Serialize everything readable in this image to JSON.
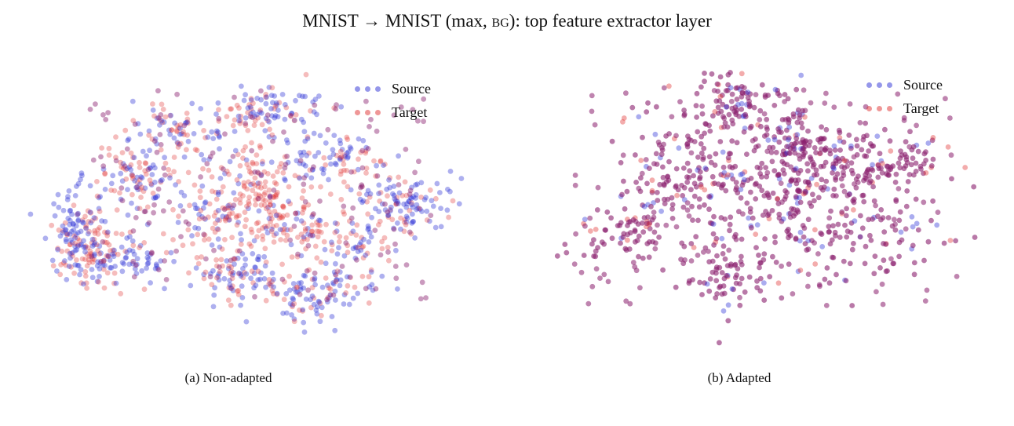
{
  "figure": {
    "title_prefix": "MNIST → MNIST (max, ",
    "title_sc": "bg",
    "title_suffix": "): top feature extractor layer"
  },
  "legend": {
    "source_label": "Source",
    "target_label": "Target"
  },
  "colors": {
    "source": "#2b2fd6",
    "target": "#e0302f",
    "mixed": "#8a1f6e"
  },
  "chart_data": [
    {
      "type": "scatter",
      "title": "",
      "caption": "(a)  Non-adapted",
      "xlabel": "",
      "ylabel": "",
      "grid": false,
      "axes_visible": false,
      "legend_position": "top-right",
      "series": [
        {
          "name": "Source",
          "color": "#2b2fd6",
          "marker_size": 4,
          "alpha": 0.4
        },
        {
          "name": "Target",
          "color": "#e0302f",
          "marker_size": 4,
          "alpha": 0.4
        }
      ]
    },
    {
      "type": "scatter",
      "title": "",
      "caption": "(b)  Adapted",
      "xlabel": "",
      "ylabel": "",
      "grid": false,
      "axes_visible": false,
      "legend_position": "top-right",
      "series": [
        {
          "name": "Source",
          "color": "#2b2fd6",
          "marker_size": 4,
          "alpha": 0.4
        },
        {
          "name": "Target",
          "color": "#e0302f",
          "marker_size": 4,
          "alpha": 0.4
        }
      ]
    }
  ]
}
